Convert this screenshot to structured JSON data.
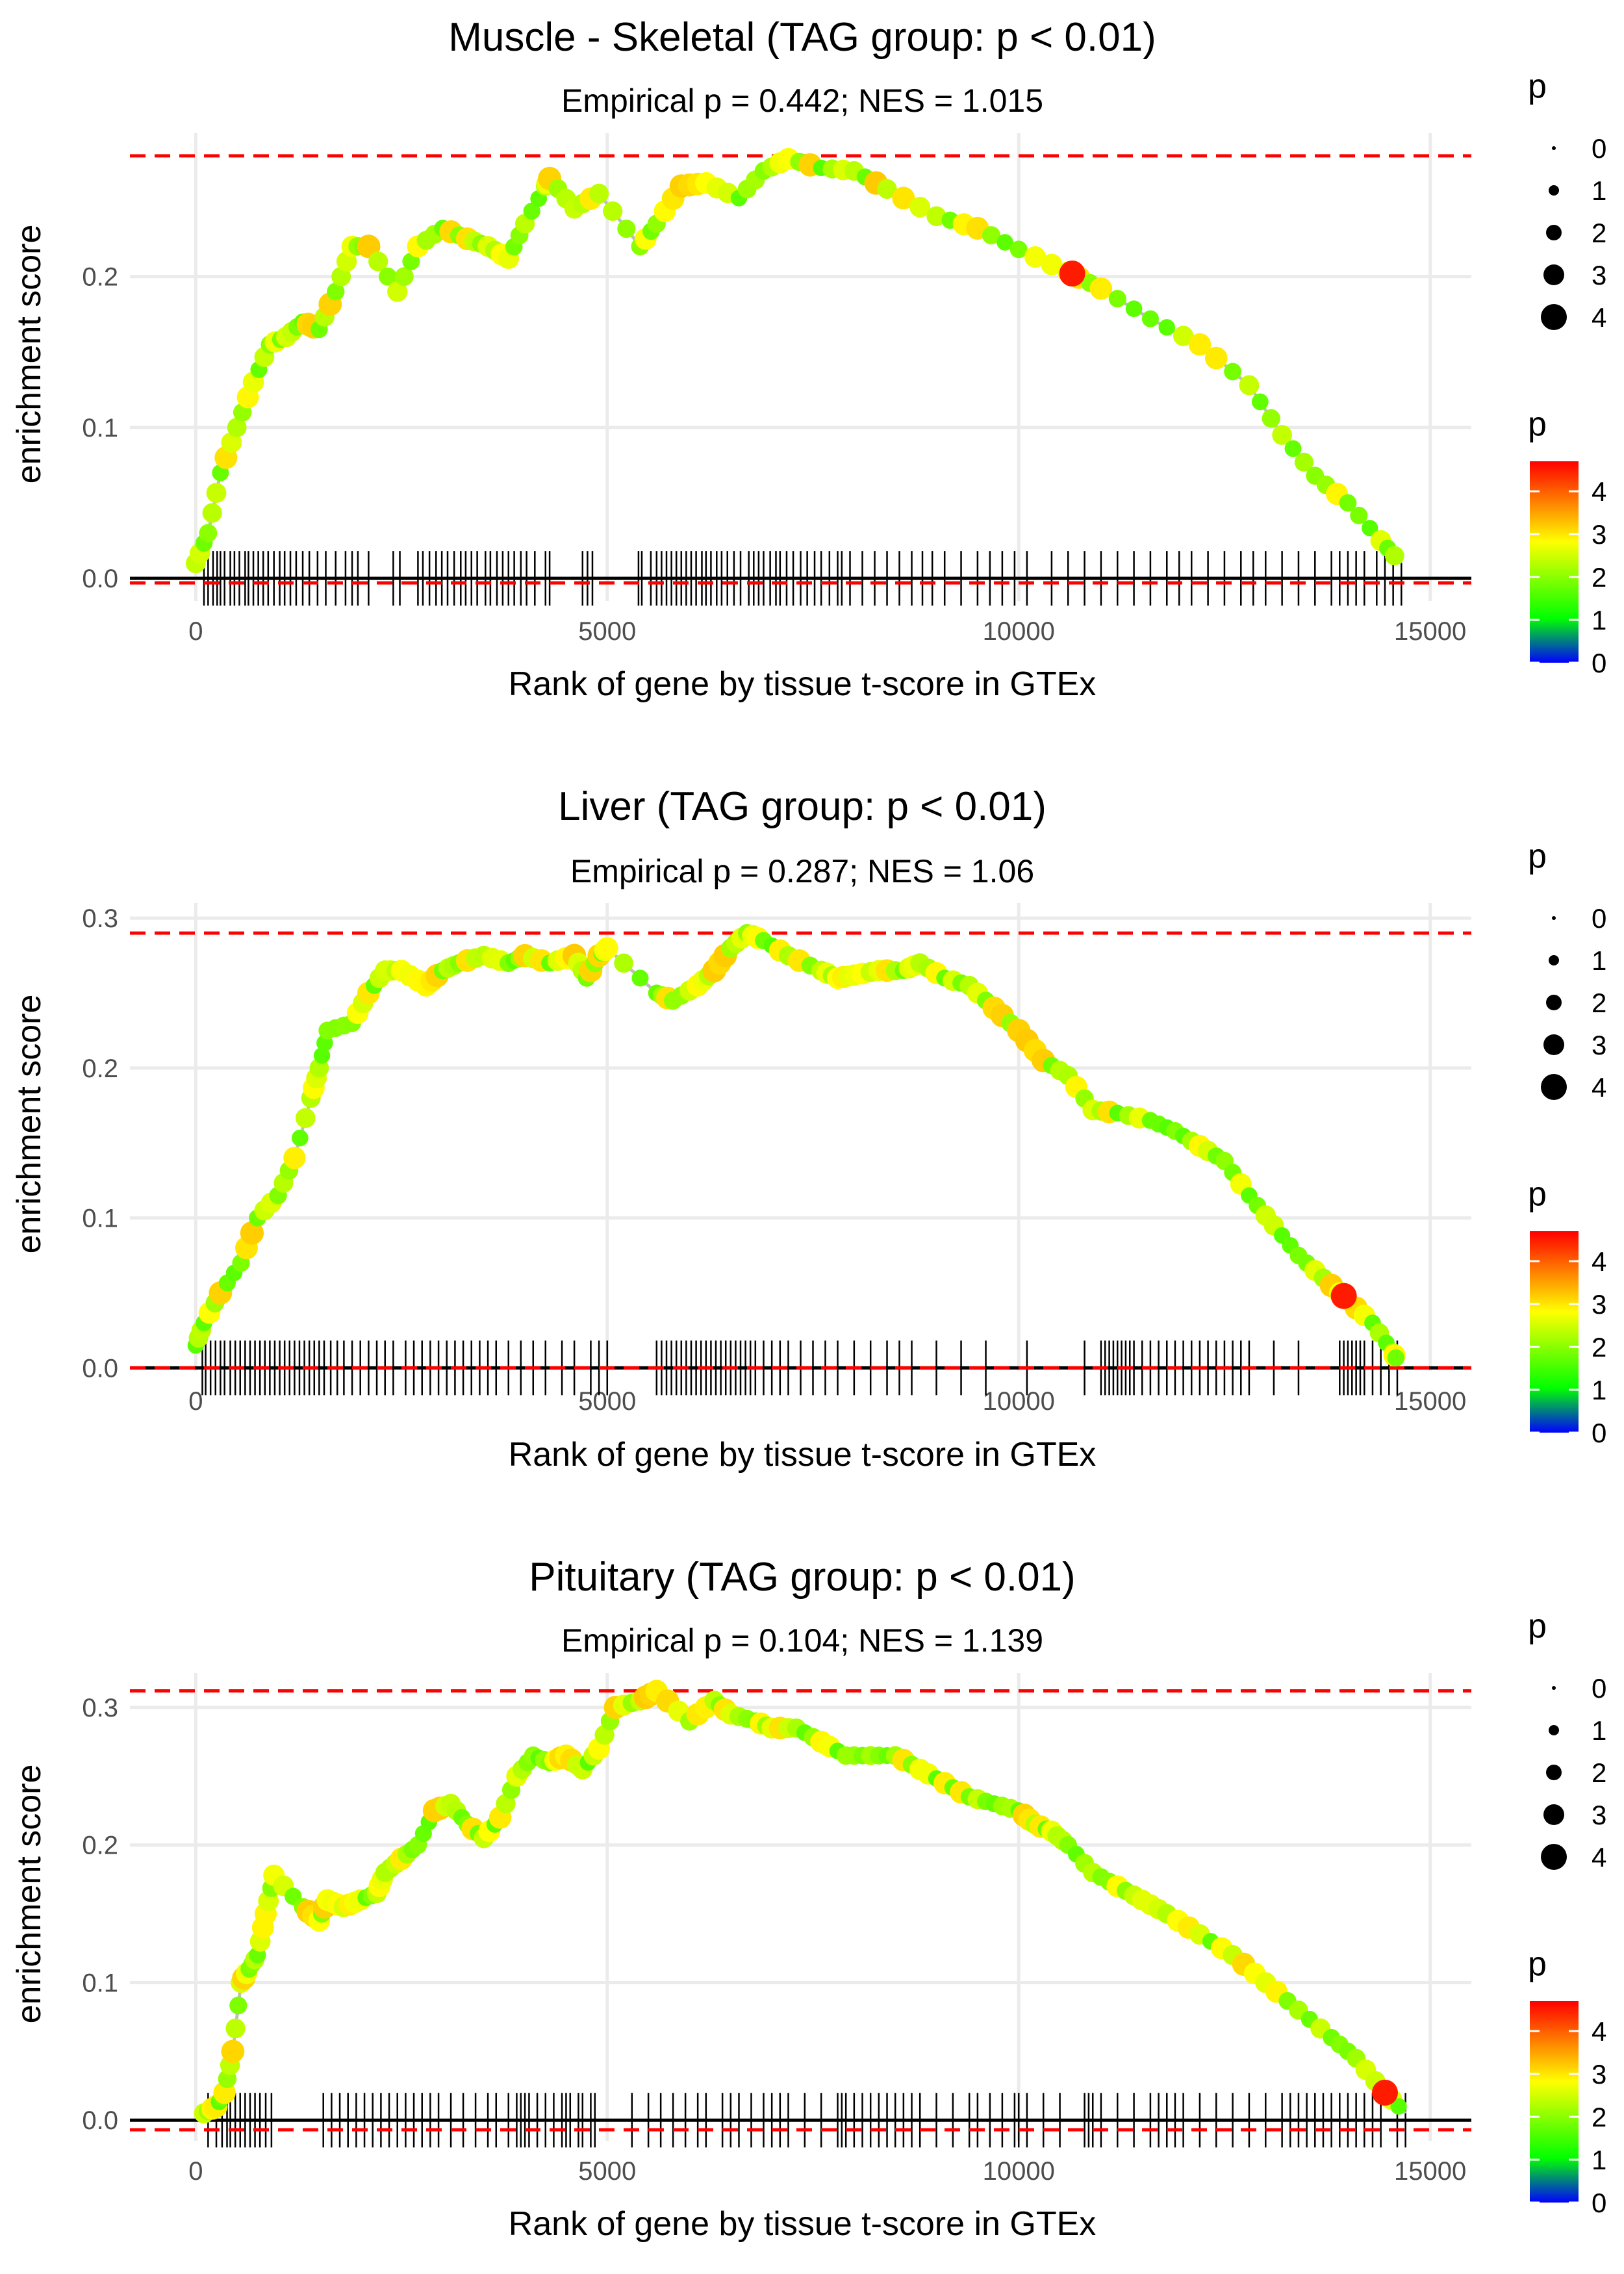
{
  "legend_labels": {
    "size_title": "p",
    "color_title": "p",
    "size_values": [
      "0",
      "1",
      "2",
      "3",
      "4"
    ],
    "color_ticks": [
      "4",
      "3",
      "2",
      "1",
      "0"
    ]
  },
  "colors": {
    "threshold_line": "#ff0000",
    "running_line": "#bebebe",
    "gridline": "#ebebeb",
    "gradient": [
      "#0000ff",
      "#00ff00",
      "#ffff00",
      "#ff0000"
    ]
  },
  "chart_data": [
    {
      "type": "line",
      "title": "Muscle - Skeletal (TAG group: p < 0.01)",
      "subtitle": "Empirical p = 0.442; NES = 1.015",
      "xlabel": "Rank of gene by tissue t-score in GTEx",
      "ylabel": "enrichment score",
      "xlim": [
        -800,
        15500
      ],
      "ylim": [
        -0.015,
        0.295
      ],
      "x_ticks": [
        0,
        5000,
        10000,
        15000
      ],
      "x_tick_labels": [
        "0",
        "5000",
        "10000",
        "15000"
      ],
      "y_ticks": [
        0,
        0.1,
        0.2
      ],
      "y_tick_labels": [
        "0.0",
        "0.1",
        "0.2"
      ],
      "max_dev_line": 0.28,
      "min_dev_line": -0.003,
      "curve": [
        [
          0,
          0.01
        ],
        [
          150,
          0.03
        ],
        [
          300,
          0.07
        ],
        [
          500,
          0.1
        ],
        [
          700,
          0.13
        ],
        [
          900,
          0.155
        ],
        [
          1100,
          0.16
        ],
        [
          1300,
          0.17
        ],
        [
          1500,
          0.165
        ],
        [
          1700,
          0.19
        ],
        [
          1900,
          0.22
        ],
        [
          2100,
          0.22
        ],
        [
          2450,
          0.19
        ],
        [
          2700,
          0.22
        ],
        [
          3000,
          0.232
        ],
        [
          3300,
          0.225
        ],
        [
          3550,
          0.22
        ],
        [
          3800,
          0.212
        ],
        [
          4000,
          0.235
        ],
        [
          4250,
          0.26
        ],
        [
          4300,
          0.265
        ],
        [
          4600,
          0.245
        ],
        [
          4900,
          0.255
        ],
        [
          5400,
          0.22
        ],
        [
          5600,
          0.235
        ],
        [
          5900,
          0.26
        ],
        [
          6200,
          0.262
        ],
        [
          6600,
          0.252
        ],
        [
          6900,
          0.27
        ],
        [
          7200,
          0.278
        ],
        [
          7600,
          0.272
        ],
        [
          8000,
          0.27
        ],
        [
          8400,
          0.258
        ],
        [
          9000,
          0.24
        ],
        [
          9500,
          0.232
        ],
        [
          10000,
          0.218
        ],
        [
          10600,
          0.203
        ],
        [
          11000,
          0.192
        ],
        [
          11600,
          0.172
        ],
        [
          12200,
          0.155
        ],
        [
          12800,
          0.128
        ],
        [
          13200,
          0.095
        ],
        [
          13600,
          0.068
        ],
        [
          14000,
          0.05
        ],
        [
          14400,
          0.025
        ],
        [
          14650,
          0.01
        ]
      ],
      "ticks_gene_hits": [
        100,
        150,
        210,
        260,
        300,
        350,
        420,
        470,
        530,
        600,
        640,
        700,
        760,
        820,
        880,
        950,
        1020,
        1080,
        1150,
        1220,
        1300,
        1380,
        1480,
        1580,
        1700,
        1820,
        1900,
        1970,
        2100,
        2400,
        2480,
        2700,
        2760,
        2840,
        2920,
        2990,
        3060,
        3140,
        3220,
        3280,
        3350,
        3420,
        3520,
        3580,
        3660,
        3730,
        3800,
        3870,
        3950,
        4020,
        4120,
        4250,
        4300,
        4700,
        4760,
        4820,
        5380,
        5420,
        5530,
        5600,
        5660,
        5720,
        5780,
        5840,
        5900,
        5960,
        6020,
        6080,
        6150,
        6200,
        6260,
        6330,
        6390,
        6460,
        6540,
        6620,
        6720,
        6780,
        6840,
        6900,
        6980,
        7050,
        7100,
        7180,
        7260,
        7350,
        7430,
        7520,
        7600,
        7700,
        7800,
        7850,
        7950,
        8100,
        8250,
        8400,
        8550,
        8700,
        8830,
        8950,
        9100,
        9300,
        9500,
        9650,
        9800,
        9950,
        10100,
        10400,
        10600,
        10800,
        11000,
        11200,
        11400,
        11600,
        11800,
        11950,
        12100,
        12300,
        12500,
        12700,
        12850,
        13000,
        13200,
        13400,
        13600,
        13800,
        13900,
        14000,
        14100,
        14200,
        14350,
        14450,
        14550,
        14650
      ],
      "highlight": {
        "x": 10650,
        "y": 0.202,
        "p": 4.5
      }
    },
    {
      "type": "line",
      "title": "Liver (TAG group: p < 0.01)",
      "subtitle": "Empirical p = 0.287; NES = 1.06",
      "xlabel": "Rank of gene by tissue t-score in GTEx",
      "ylabel": "enrichment score",
      "xlim": [
        -800,
        15500
      ],
      "ylim": [
        -0.002,
        0.31
      ],
      "x_ticks": [
        0,
        5000,
        10000,
        15000
      ],
      "x_tick_labels": [
        "0",
        "5000",
        "10000",
        "15000"
      ],
      "y_ticks": [
        0,
        0.1,
        0.2,
        0.3
      ],
      "y_tick_labels": [
        "0.0",
        "0.1",
        "0.2",
        "0.3"
      ],
      "max_dev_line": 0.29,
      "min_dev_line": 0.0,
      "curve": [
        [
          0,
          0.015
        ],
        [
          100,
          0.03
        ],
        [
          300,
          0.05
        ],
        [
          550,
          0.07
        ],
        [
          750,
          0.1
        ],
        [
          1000,
          0.115
        ],
        [
          1200,
          0.14
        ],
        [
          1400,
          0.18
        ],
        [
          1500,
          0.2
        ],
        [
          1600,
          0.225
        ],
        [
          1900,
          0.23
        ],
        [
          2100,
          0.25
        ],
        [
          2300,
          0.265
        ],
        [
          2500,
          0.265
        ],
        [
          2800,
          0.255
        ],
        [
          3000,
          0.265
        ],
        [
          3200,
          0.27
        ],
        [
          3500,
          0.275
        ],
        [
          3800,
          0.27
        ],
        [
          4000,
          0.275
        ],
        [
          4300,
          0.27
        ],
        [
          4600,
          0.275
        ],
        [
          4750,
          0.26
        ],
        [
          4900,
          0.275
        ],
        [
          5000,
          0.28
        ],
        [
          5600,
          0.25
        ],
        [
          5800,
          0.245
        ],
        [
          6100,
          0.255
        ],
        [
          6300,
          0.265
        ],
        [
          6500,
          0.28
        ],
        [
          6700,
          0.29
        ],
        [
          6900,
          0.285
        ],
        [
          7200,
          0.275
        ],
        [
          7600,
          0.265
        ],
        [
          7800,
          0.26
        ],
        [
          8000,
          0.262
        ],
        [
          8300,
          0.265
        ],
        [
          8600,
          0.265
        ],
        [
          8800,
          0.27
        ],
        [
          9100,
          0.26
        ],
        [
          9400,
          0.255
        ],
        [
          9700,
          0.24
        ],
        [
          10000,
          0.225
        ],
        [
          10300,
          0.205
        ],
        [
          10600,
          0.195
        ],
        [
          10900,
          0.172
        ],
        [
          11200,
          0.17
        ],
        [
          11600,
          0.165
        ],
        [
          11900,
          0.158
        ],
        [
          12200,
          0.148
        ],
        [
          12500,
          0.138
        ],
        [
          12800,
          0.115
        ],
        [
          13100,
          0.095
        ],
        [
          13400,
          0.075
        ],
        [
          13700,
          0.06
        ],
        [
          14000,
          0.045
        ],
        [
          14300,
          0.03
        ],
        [
          14550,
          0.01
        ],
        [
          14600,
          0.005
        ]
      ],
      "ticks_gene_hits": [
        80,
        120,
        180,
        240,
        300,
        350,
        420,
        480,
        540,
        600,
        660,
        720,
        780,
        840,
        900,
        960,
        1020,
        1080,
        1140,
        1200,
        1260,
        1320,
        1380,
        1440,
        1500,
        1560,
        1640,
        1720,
        1800,
        1900,
        2000,
        2100,
        2200,
        2300,
        2400,
        2550,
        2650,
        2750,
        2850,
        2950,
        3050,
        3150,
        3250,
        3350,
        3450,
        3550,
        3650,
        3800,
        3950,
        4100,
        4250,
        4450,
        4600,
        4800,
        4900,
        5000,
        5600,
        5660,
        5720,
        5780,
        5840,
        5900,
        5960,
        6020,
        6080,
        6140,
        6200,
        6260,
        6320,
        6380,
        6440,
        6500,
        6560,
        6620,
        6680,
        6740,
        6800,
        6900,
        7000,
        7100,
        7200,
        7350,
        7500,
        7650,
        7800,
        8000,
        8200,
        8400,
        8550,
        8700,
        9000,
        9300,
        9600,
        10100,
        10800,
        11000,
        11050,
        11100,
        11150,
        11200,
        11250,
        11300,
        11350,
        11400,
        11500,
        11600,
        11700,
        11800,
        11900,
        12000,
        12100,
        12200,
        12300,
        12400,
        12500,
        12600,
        12700,
        12800,
        13100,
        13400,
        13900,
        13950,
        14000,
        14050,
        14100,
        14150,
        14200,
        14300,
        14400,
        14500,
        14600
      ],
      "highlight": {
        "x": 13950,
        "y": 0.048,
        "p": 4.5
      }
    },
    {
      "type": "line",
      "title": "Pituitary (TAG group: p < 0.01)",
      "subtitle": "Empirical p = 0.104; NES = 1.139",
      "xlabel": "Rank of gene by tissue t-score in GTEx",
      "ylabel": "enrichment score",
      "xlim": [
        -800,
        15500
      ],
      "ylim": [
        -0.015,
        0.325
      ],
      "x_ticks": [
        0,
        5000,
        10000,
        15000
      ],
      "x_tick_labels": [
        "0",
        "5000",
        "10000",
        "15000"
      ],
      "y_ticks": [
        0,
        0.1,
        0.2,
        0.3
      ],
      "y_tick_labels": [
        "0.0",
        "0.1",
        "0.2",
        "0.3"
      ],
      "max_dev_line": 0.312,
      "min_dev_line": -0.007,
      "curve": [
        [
          100,
          0.005
        ],
        [
          250,
          0.01
        ],
        [
          350,
          0.02
        ],
        [
          450,
          0.05
        ],
        [
          550,
          0.1
        ],
        [
          650,
          0.11
        ],
        [
          750,
          0.12
        ],
        [
          850,
          0.15
        ],
        [
          950,
          0.178
        ],
        [
          1300,
          0.155
        ],
        [
          1500,
          0.145
        ],
        [
          1600,
          0.16
        ],
        [
          1800,
          0.155
        ],
        [
          2000,
          0.16
        ],
        [
          2200,
          0.165
        ],
        [
          2300,
          0.18
        ],
        [
          2500,
          0.19
        ],
        [
          2700,
          0.2
        ],
        [
          2900,
          0.225
        ],
        [
          3100,
          0.23
        ],
        [
          3300,
          0.215
        ],
        [
          3500,
          0.205
        ],
        [
          3700,
          0.22
        ],
        [
          3900,
          0.25
        ],
        [
          4100,
          0.265
        ],
        [
          4300,
          0.26
        ],
        [
          4500,
          0.265
        ],
        [
          4700,
          0.255
        ],
        [
          4900,
          0.27
        ],
        [
          5100,
          0.3
        ],
        [
          5400,
          0.305
        ],
        [
          5600,
          0.312
        ],
        [
          6000,
          0.29
        ],
        [
          6300,
          0.305
        ],
        [
          6500,
          0.295
        ],
        [
          6800,
          0.29
        ],
        [
          7000,
          0.285
        ],
        [
          7300,
          0.285
        ],
        [
          7600,
          0.275
        ],
        [
          7900,
          0.265
        ],
        [
          8200,
          0.265
        ],
        [
          8500,
          0.265
        ],
        [
          8800,
          0.255
        ],
        [
          9100,
          0.245
        ],
        [
          9400,
          0.235
        ],
        [
          9700,
          0.23
        ],
        [
          10000,
          0.225
        ],
        [
          10200,
          0.215
        ],
        [
          10400,
          0.21
        ],
        [
          10600,
          0.2
        ],
        [
          10900,
          0.18
        ],
        [
          11200,
          0.17
        ],
        [
          11500,
          0.16
        ],
        [
          11800,
          0.15
        ],
        [
          12200,
          0.135
        ],
        [
          12600,
          0.12
        ],
        [
          13000,
          0.1
        ],
        [
          13400,
          0.08
        ],
        [
          13800,
          0.06
        ],
        [
          14100,
          0.045
        ],
        [
          14450,
          0.02
        ],
        [
          14700,
          0.005
        ]
      ],
      "ticks_gene_hits": [
        150,
        250,
        320,
        380,
        420,
        480,
        540,
        600,
        660,
        720,
        780,
        850,
        920,
        1550,
        1650,
        1750,
        1850,
        1950,
        2050,
        2150,
        2250,
        2350,
        2450,
        2550,
        2650,
        2750,
        2850,
        2950,
        3100,
        3250,
        3400,
        3550,
        3650,
        3800,
        3900,
        3950,
        4000,
        4050,
        4150,
        4250,
        4350,
        4450,
        4500,
        4550,
        4650,
        4700,
        4800,
        4850,
        5300,
        5500,
        5650,
        5800,
        5950,
        6100,
        6200,
        6400,
        6500,
        6600,
        6750,
        6900,
        7000,
        7100,
        7200,
        7400,
        7600,
        7800,
        7850,
        7900,
        8000,
        8100,
        8200,
        8300,
        8400,
        8500,
        8600,
        8700,
        8800,
        9000,
        9200,
        9400,
        9500,
        9650,
        9800,
        9950,
        10000,
        10100,
        10300,
        10500,
        10800,
        10850,
        10900,
        11000,
        11200,
        11400,
        11600,
        11700,
        11800,
        11900,
        12000,
        12200,
        12400,
        12600,
        12800,
        13000,
        13200,
        13300,
        13400,
        13500,
        13600,
        13700,
        13800,
        13900,
        14000,
        14100,
        14200,
        14300,
        14400,
        14600,
        14700
      ],
      "highlight": {
        "x": 14450,
        "y": 0.02,
        "p": 4.5
      }
    }
  ]
}
